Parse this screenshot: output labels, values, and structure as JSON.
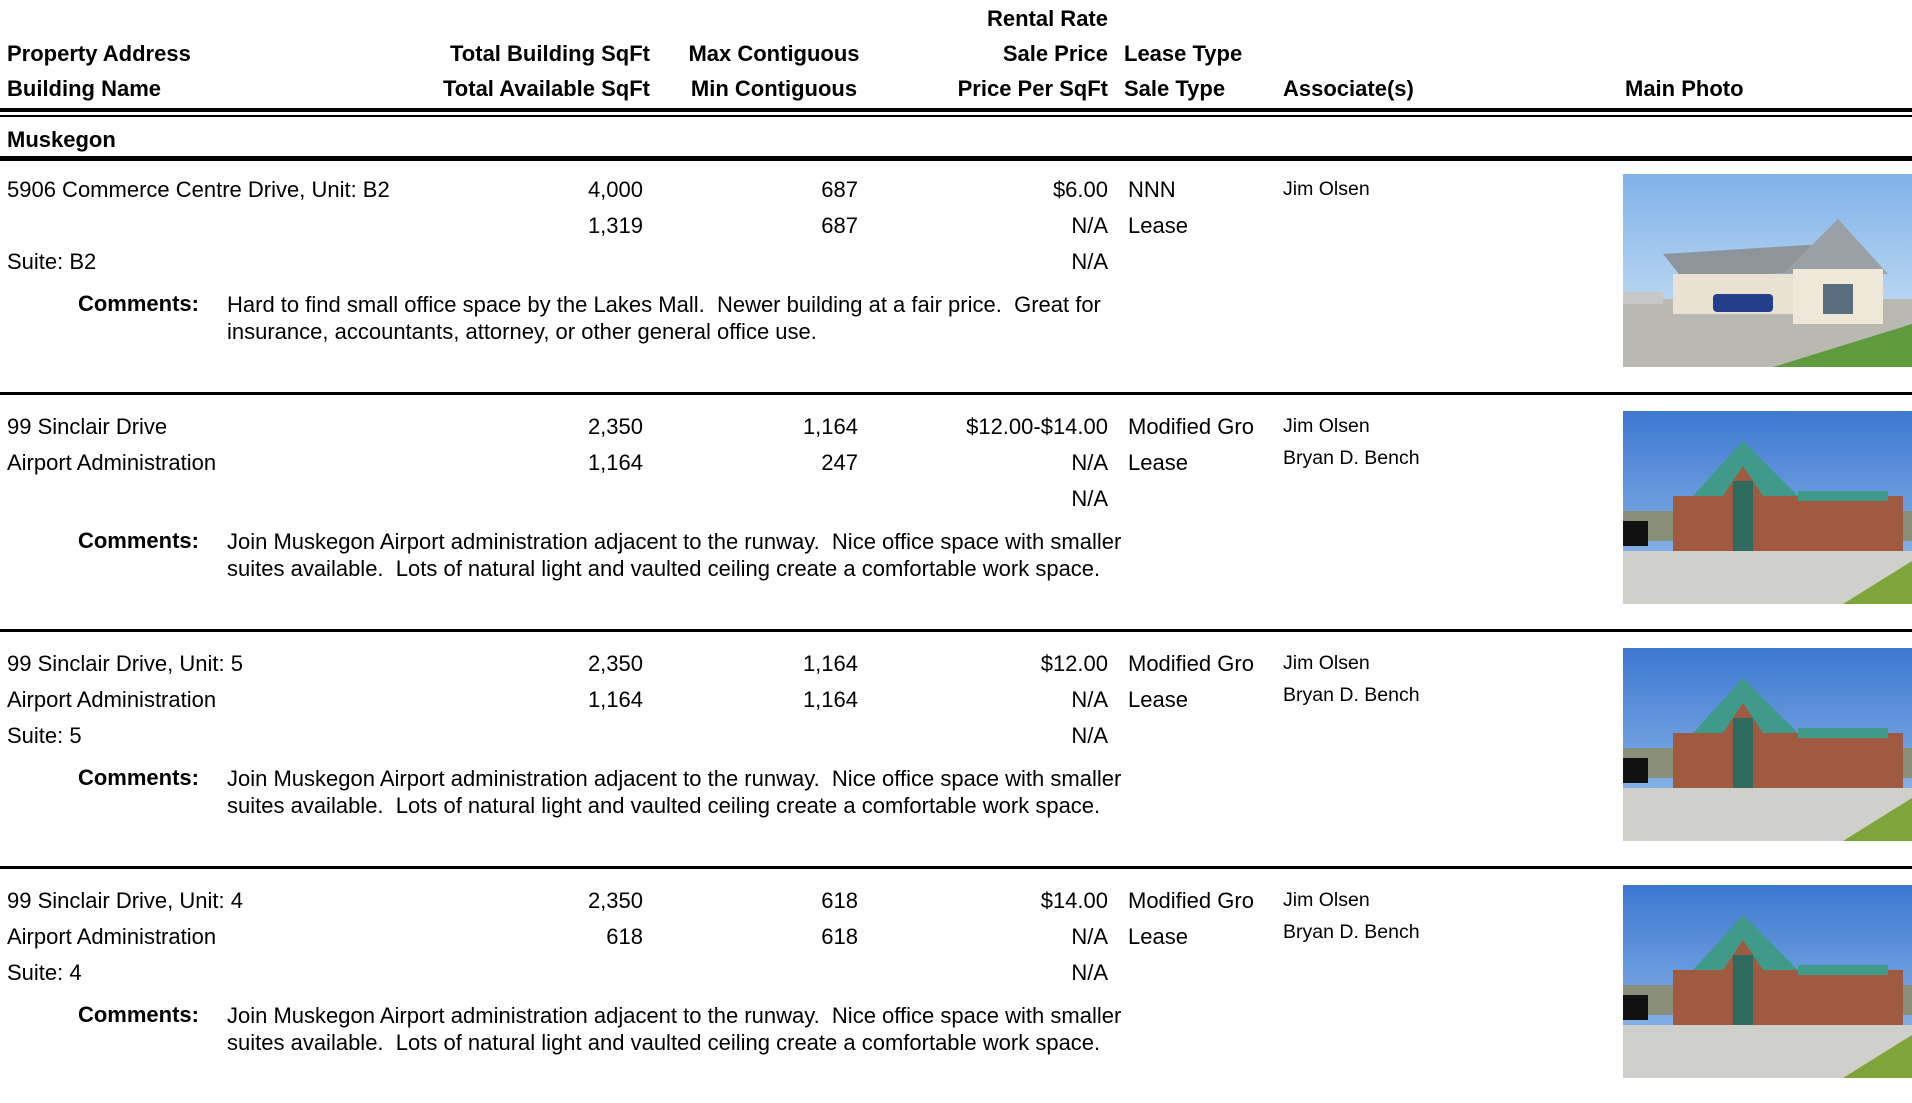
{
  "header": {
    "columns": [
      [
        "Property Address",
        "Building Name"
      ],
      [
        "Total Building SqFt",
        "Total Available SqFt"
      ],
      [
        "Max Contiguous",
        "Min Contiguous"
      ],
      [
        "Rental Rate",
        "Sale Price",
        "Price Per SqFt"
      ],
      [
        "Lease Type",
        "Sale Type"
      ],
      [
        "Associate(s)"
      ],
      [
        "Main Photo"
      ]
    ]
  },
  "section": {
    "title": "Muskegon"
  },
  "comments_label": "Comments:",
  "listings": [
    {
      "address": "5906 Commerce Centre Drive, Unit: B2",
      "suite": "Suite: B2",
      "total_building_sqft": "4,000",
      "total_available_sqft": "1,319",
      "max_contiguous": "687",
      "min_contiguous": "687",
      "rental_rate": "$6.00",
      "sale_price": "N/A",
      "price_per_sqft": "N/A",
      "lease_type": "NNN",
      "sale_type": "Lease",
      "associates": [
        "Jim Olsen"
      ],
      "comments": [
        "Hard to find small office space by the Lakes Mall.  Newer building at a fair price.  Great for",
        "insurance, accountants, attorney, or other general office use."
      ]
    },
    {
      "address": "99 Sinclair Drive",
      "building_name": "Airport Administration",
      "total_building_sqft": "2,350",
      "total_available_sqft": "1,164",
      "max_contiguous": "1,164",
      "min_contiguous": "247",
      "rental_rate": "$12.00-$14.00",
      "sale_price": "N/A",
      "price_per_sqft": "N/A",
      "lease_type": "Modified Gro",
      "sale_type": "Lease",
      "associates": [
        "Jim Olsen",
        "Bryan D. Bench"
      ],
      "comments": [
        "Join Muskegon Airport administration adjacent to the runway.  Nice office space with smaller",
        "suites available.  Lots of natural light and vaulted ceiling create a comfortable work space."
      ]
    },
    {
      "address": "99 Sinclair Drive, Unit: 5",
      "building_name": "Airport Administration",
      "suite": "Suite: 5",
      "total_building_sqft": "2,350",
      "total_available_sqft": "1,164",
      "max_contiguous": "1,164",
      "min_contiguous": "1,164",
      "rental_rate": "$12.00",
      "sale_price": "N/A",
      "price_per_sqft": "N/A",
      "lease_type": "Modified Gro",
      "sale_type": "Lease",
      "associates": [
        "Jim Olsen",
        "Bryan D. Bench"
      ],
      "comments": [
        "Join Muskegon Airport administration adjacent to the runway.  Nice office space with smaller",
        "suites available.  Lots of natural light and vaulted ceiling create a comfortable work space."
      ]
    },
    {
      "address": "99 Sinclair Drive, Unit: 4",
      "building_name": "Airport Administration",
      "suite": "Suite: 4",
      "total_building_sqft": "2,350",
      "total_available_sqft": "618",
      "max_contiguous": "618",
      "min_contiguous": "618",
      "rental_rate": "$14.00",
      "sale_price": "N/A",
      "price_per_sqft": "N/A",
      "lease_type": "Modified Gro",
      "sale_type": "Lease",
      "associates": [
        "Jim Olsen",
        "Bryan D. Bench"
      ],
      "comments": [
        "Join Muskegon Airport administration adjacent to the runway.  Nice office space with smaller",
        "suites available.  Lots of natural light and vaulted ceiling create a comfortable work space."
      ]
    }
  ]
}
